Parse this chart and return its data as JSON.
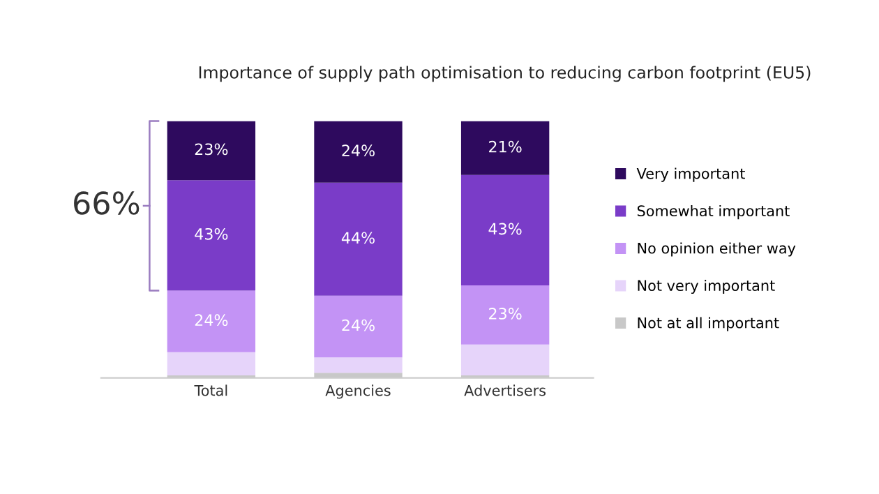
{
  "chart_data": {
    "type": "bar",
    "stacked": true,
    "title": "Importance of supply path optimisation to reducing carbon footprint (EU5)",
    "categories": [
      "Total",
      "Agencies",
      "Advertisers"
    ],
    "series": [
      {
        "name": "Not at all important",
        "color": "#c8c8c8",
        "values": [
          1,
          2,
          1
        ],
        "value_labels": [
          null,
          null,
          null
        ]
      },
      {
        "name": "Not very important",
        "color": "#e6d4fa",
        "values": [
          9,
          6,
          12
        ],
        "value_labels": [
          null,
          null,
          null
        ]
      },
      {
        "name": "No opinion either way",
        "color": "#c393f5",
        "values": [
          24,
          24,
          23
        ],
        "value_labels": [
          "24%",
          "24%",
          "23%"
        ]
      },
      {
        "name": "Somewhat important",
        "color": "#7a3cc8",
        "values": [
          43,
          44,
          43
        ],
        "value_labels": [
          "43%",
          "44%",
          "43%"
        ]
      },
      {
        "name": "Very important",
        "color": "#2e0a5e",
        "values": [
          23,
          24,
          21
        ],
        "value_labels": [
          "23%",
          "24%",
          "21%"
        ]
      }
    ],
    "legend": "right",
    "grid": false,
    "annotations": [
      "66%"
    ]
  }
}
